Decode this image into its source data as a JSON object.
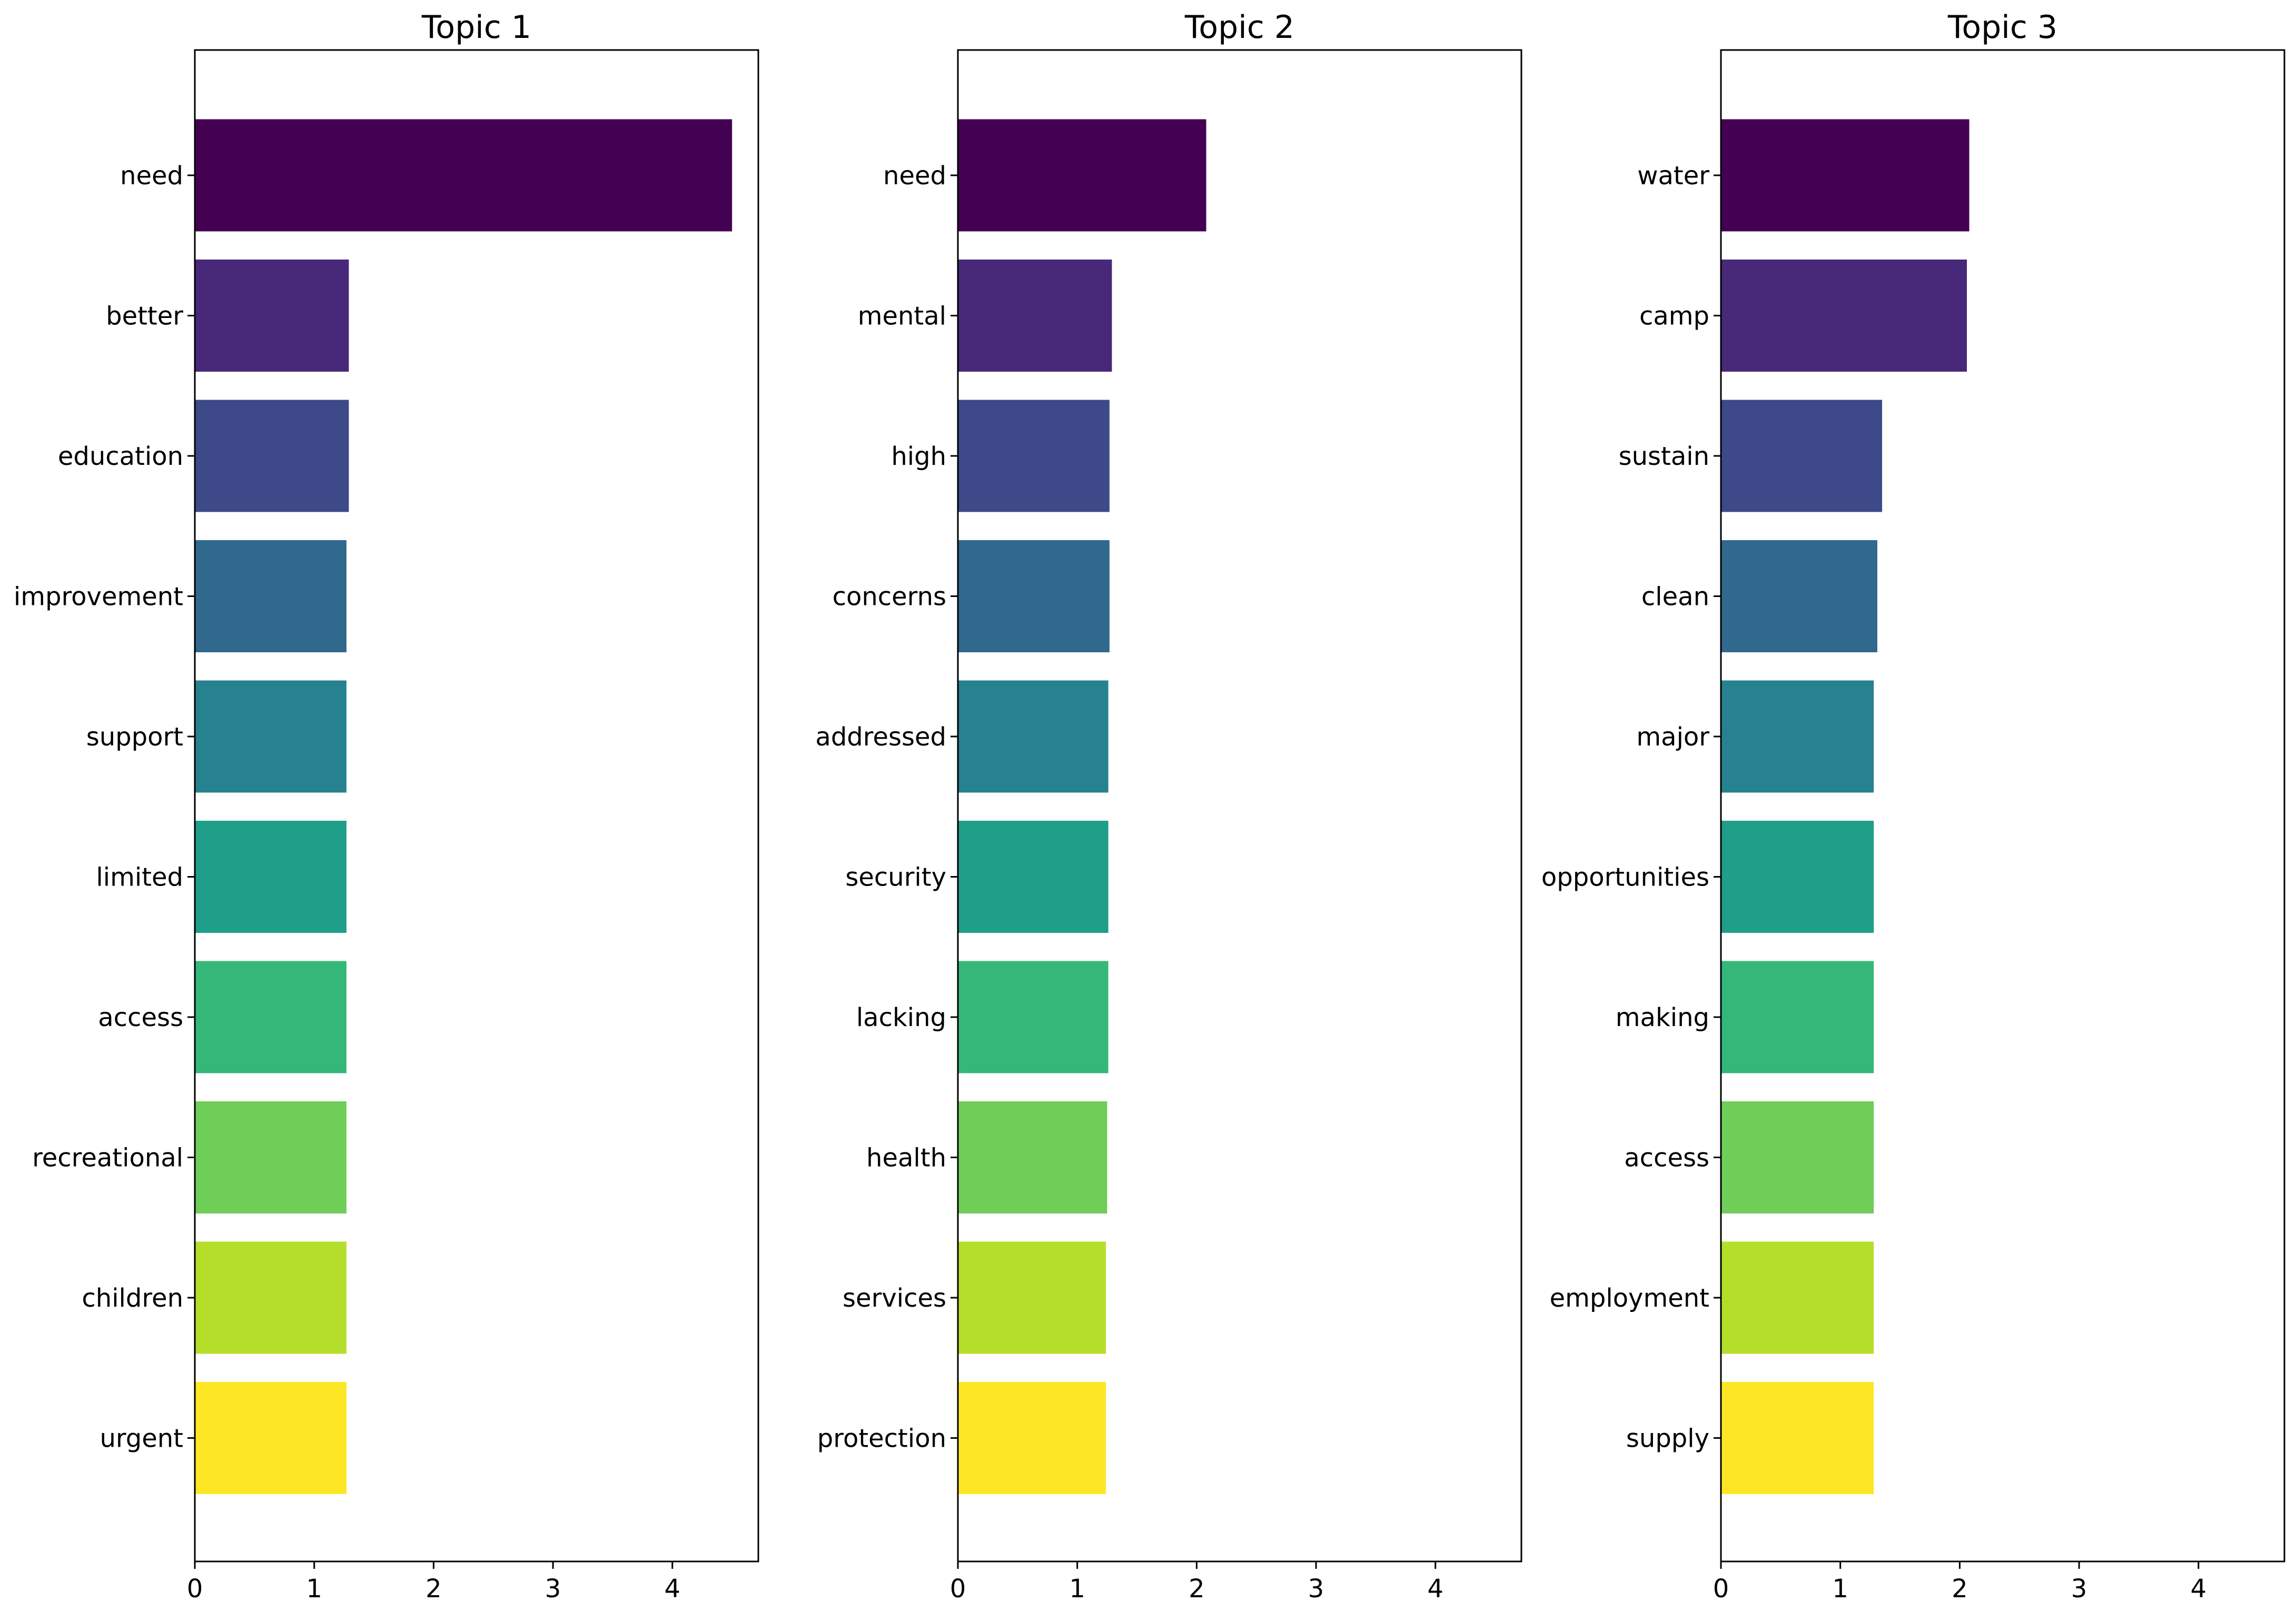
{
  "chart_data": [
    {
      "type": "bar",
      "orientation": "horizontal",
      "title": "Topic 1",
      "xlabel": "",
      "ylabel": "",
      "xlim": [
        0,
        4.72
      ],
      "xticks": [
        "0",
        "1",
        "2",
        "3",
        "4"
      ],
      "grid": false,
      "categories": [
        "need",
        "better",
        "education",
        "improvement",
        "support",
        "limited",
        "access",
        "recreational",
        "children",
        "urgent"
      ],
      "values": [
        4.5,
        1.29,
        1.29,
        1.27,
        1.27,
        1.27,
        1.27,
        1.27,
        1.27,
        1.27
      ]
    },
    {
      "type": "bar",
      "orientation": "horizontal",
      "title": "Topic 2",
      "xlabel": "",
      "ylabel": "",
      "xlim": [
        0,
        4.72
      ],
      "xticks": [
        "0",
        "1",
        "2",
        "3",
        "4"
      ],
      "grid": false,
      "categories": [
        "need",
        "mental",
        "high",
        "concerns",
        "addressed",
        "security",
        "lacking",
        "health",
        "services",
        "protection"
      ],
      "values": [
        2.08,
        1.29,
        1.27,
        1.27,
        1.26,
        1.26,
        1.26,
        1.25,
        1.24,
        1.24
      ]
    },
    {
      "type": "bar",
      "orientation": "horizontal",
      "title": "Topic 3",
      "xlabel": "",
      "ylabel": "",
      "xlim": [
        0,
        4.72
      ],
      "xticks": [
        "0",
        "1",
        "2",
        "3",
        "4"
      ],
      "grid": false,
      "categories": [
        "water",
        "camp",
        "sustain",
        "clean",
        "major",
        "opportunities",
        "making",
        "access",
        "employment",
        "supply"
      ],
      "values": [
        2.08,
        2.06,
        1.35,
        1.31,
        1.28,
        1.28,
        1.28,
        1.28,
        1.28,
        1.28
      ]
    }
  ],
  "palette": [
    "#440154",
    "#482878",
    "#3e4989",
    "#31688e",
    "#26828e",
    "#1f9e89",
    "#35b779",
    "#6ece58",
    "#b5de2b",
    "#fde725"
  ]
}
